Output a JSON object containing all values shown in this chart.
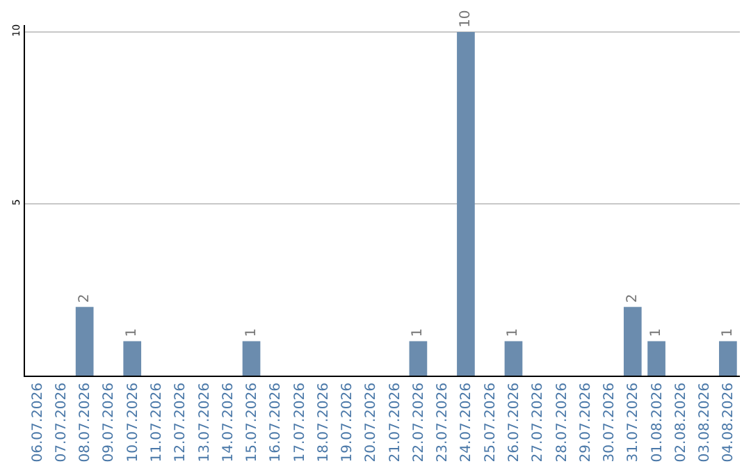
{
  "chart_data": {
    "type": "bar",
    "categories": [
      "06.07.2026",
      "07.07.2026",
      "08.07.2026",
      "09.07.2026",
      "10.07.2026",
      "11.07.2026",
      "12.07.2026",
      "13.07.2026",
      "14.07.2026",
      "15.07.2026",
      "16.07.2026",
      "17.07.2026",
      "18.07.2026",
      "19.07.2026",
      "20.07.2026",
      "21.07.2026",
      "22.07.2026",
      "23.07.2026",
      "24.07.2026",
      "25.07.2026",
      "26.07.2026",
      "27.07.2026",
      "28.07.2026",
      "29.07.2026",
      "30.07.2026",
      "31.07.2026",
      "01.08.2026",
      "02.08.2026",
      "03.08.2026",
      "04.08.2026"
    ],
    "values": [
      0,
      0,
      2,
      0,
      1,
      0,
      0,
      0,
      0,
      1,
      0,
      0,
      0,
      0,
      0,
      0,
      1,
      0,
      10,
      0,
      1,
      0,
      0,
      0,
      0,
      2,
      1,
      0,
      0,
      1
    ],
    "value_labels": [
      null,
      null,
      "2",
      null,
      "1",
      null,
      null,
      null,
      null,
      "1",
      null,
      null,
      null,
      null,
      null,
      null,
      "1",
      null,
      "10",
      null,
      "1",
      null,
      null,
      null,
      null,
      "2",
      "1",
      null,
      null,
      "1"
    ],
    "color": "#6b8cae",
    "ylim": [
      0,
      10.2
    ],
    "yticks": [
      5,
      10
    ],
    "grid": "y",
    "legend": false
  }
}
